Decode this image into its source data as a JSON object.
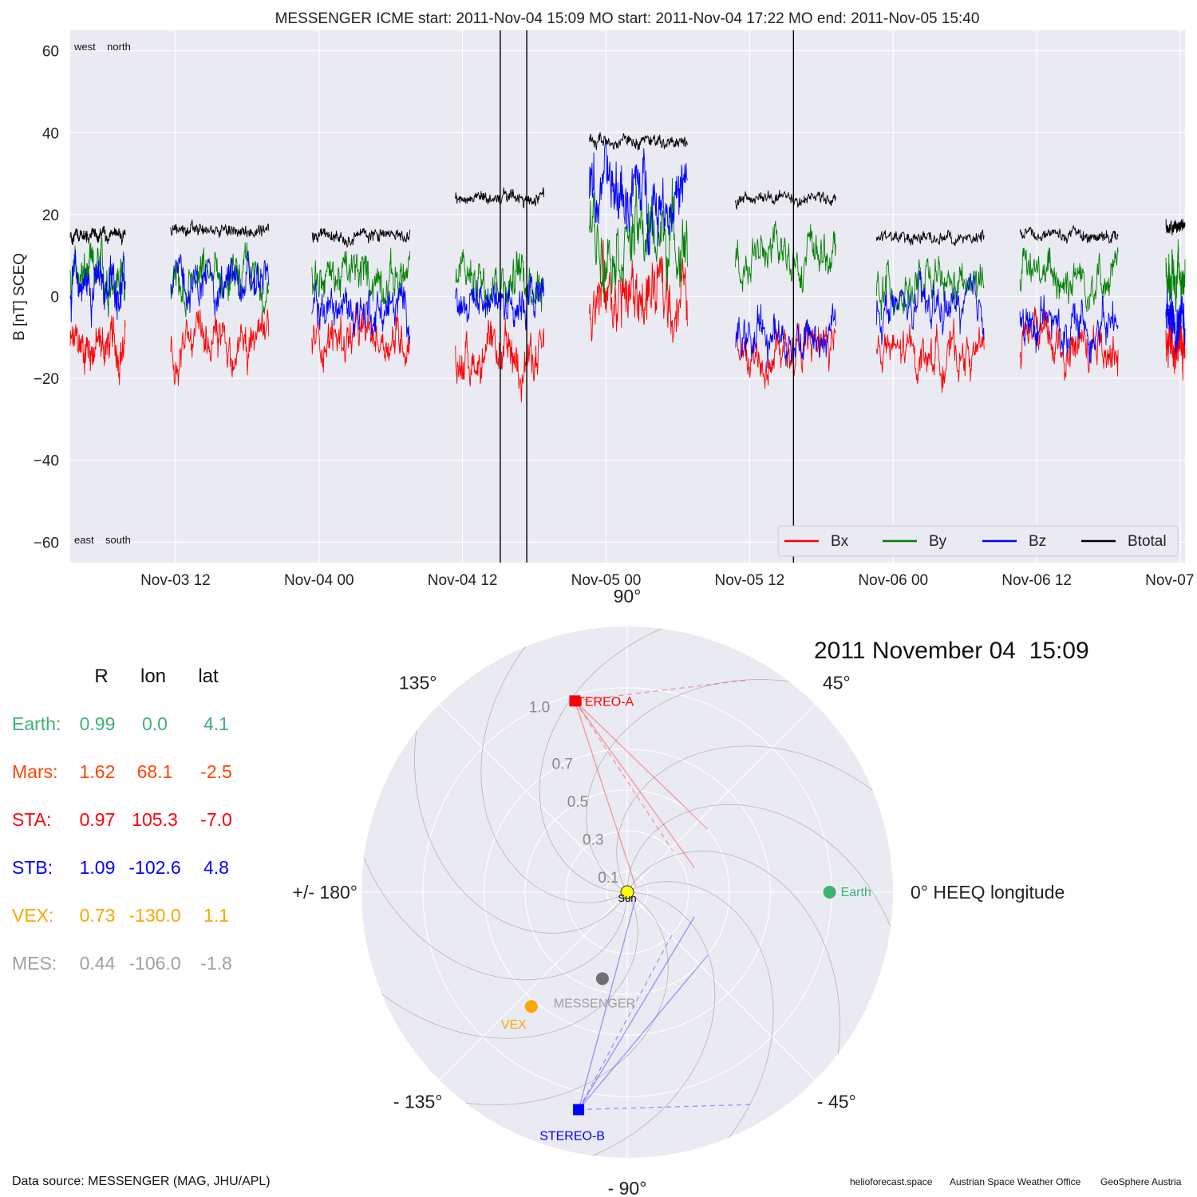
{
  "title": "MESSENGER    ICME start: 2011-Nov-04 15:09   MO start: 2011-Nov-04 17:22   MO end: 2011-Nov-05 15:40",
  "corner_labels": {
    "top": "west    north",
    "bottom": "east    south"
  },
  "footer": {
    "data_source": "Data source: MESSENGER (MAG, JHU/APL)",
    "credits": [
      "helioforecast.space",
      "Austrian Space Weather Office",
      "GeoSphere Austria"
    ]
  },
  "colors": {
    "Bx": "#ff0000",
    "By": "#008000",
    "Bz": "#0000ff",
    "Btotal": "#000000",
    "earth": "#3cb371",
    "mars": "#ff4500",
    "sta": "#ff0000",
    "stb": "#0000ff",
    "vex": "#ffa500",
    "mes": "#a0a0a0",
    "plot_bg": "#eaeaf2"
  },
  "chart_data": [
    {
      "type": "line",
      "title": "MESSENGER    ICME start: 2011-Nov-04 15:09   MO start: 2011-Nov-04 17:22   MO end: 2011-Nov-05 15:40",
      "ylabel": "B [nT] SCEQ",
      "xlabel": "",
      "x_range": [
        "2011-11-03 03:12",
        "2011-11-07 00:24"
      ],
      "ylim": [
        -65,
        65
      ],
      "yticks": [
        -60,
        -40,
        -20,
        0,
        20,
        40,
        60
      ],
      "xtick_labels": [
        "Nov-03 12",
        "Nov-04 00",
        "Nov-04 12",
        "Nov-05 00",
        "Nov-05 12",
        "Nov-06 00",
        "Nov-06 12",
        "Nov-07 00"
      ],
      "xtick_times": [
        "2011-11-03 12:00",
        "2011-11-04 00:00",
        "2011-11-04 12:00",
        "2011-11-05 00:00",
        "2011-11-05 12:00",
        "2011-11-06 00:00",
        "2011-11-06 12:00",
        "2011-11-07 00:00"
      ],
      "grid": true,
      "legend": {
        "placement": "bottom-right",
        "entries": [
          "Bx",
          "By",
          "Bz",
          "Btotal"
        ]
      },
      "event_lines": [
        {
          "label": "ICME start",
          "time": "2011-11-04 15:09"
        },
        {
          "label": "MO start",
          "time": "2011-11-04 17:22"
        },
        {
          "label": "MO end",
          "time": "2011-11-05 15:40"
        }
      ],
      "series_note": "Approximate mean levels per data segment (times in 2011-11-DD HH:MM)",
      "segments": [
        {
          "start": "2011-11-03 03:12",
          "end": "2011-11-03 07:48",
          "Btotal": 15,
          "Bx": -12,
          "By": 5,
          "Bz": 3
        },
        {
          "start": "2011-11-03 11:36",
          "end": "2011-11-03 19:48",
          "Btotal": 16,
          "Bx": -12,
          "By": 4,
          "Bz": 3
        },
        {
          "start": "2011-11-03 23:24",
          "end": "2011-11-04 07:36",
          "Btotal": 15,
          "Bx": -10,
          "By": 5,
          "Bz": -3
        },
        {
          "start": "2011-11-04 11:24",
          "end": "2011-11-04 18:48",
          "Btotal": 24,
          "Bx": -15,
          "By": 5,
          "Bz": 0
        },
        {
          "start": "2011-11-04 22:36",
          "end": "2011-11-05 06:48",
          "Btotal": 38,
          "Bx": 0,
          "By": 15,
          "Bz": 25
        },
        {
          "start": "2011-11-05 10:48",
          "end": "2011-11-05 19:12",
          "Btotal": 24,
          "Bx": -13,
          "By": 10,
          "Bz": -10
        },
        {
          "start": "2011-11-05 22:36",
          "end": "2011-11-06 07:36",
          "Btotal": 14,
          "Bx": -14,
          "By": 2,
          "Bz": -3
        },
        {
          "start": "2011-11-06 10:36",
          "end": "2011-11-06 18:48",
          "Btotal": 15,
          "Bx": -12,
          "By": 5,
          "Bz": -7
        },
        {
          "start": "2011-11-06 22:48",
          "end": "2011-11-07 00:24",
          "Btotal": 17,
          "Bx": -12,
          "By": 5,
          "Bz": -5
        }
      ]
    },
    {
      "type": "scatter",
      "subtype": "polar",
      "date_label": "2011 November 04  15:09",
      "r_ticks": [
        0.1,
        0.3,
        0.5,
        0.7,
        1.0
      ],
      "r_tick_labels": [
        "0.1",
        "0.3",
        "0.5",
        "0.7",
        "1.0"
      ],
      "angle_labels": [
        {
          "angle": 90,
          "text": "90°"
        },
        {
          "angle": 45,
          "text": "45°"
        },
        {
          "angle": 0,
          "text": "0° HEEQ longitude"
        },
        {
          "angle": -45,
          "text": "- 45°"
        },
        {
          "angle": -90,
          "text": "- 90°"
        },
        {
          "angle": -135,
          "text": "- 135°"
        },
        {
          "angle": 180,
          "text": "+/- 180°"
        },
        {
          "angle": 135,
          "text": "135°"
        }
      ],
      "sun": {
        "name": "Sun",
        "r": 0,
        "lon": 0
      },
      "bodies": [
        {
          "name": "Earth",
          "r": 0.99,
          "lon": 0.0,
          "color": "#3cb371",
          "marker": "circle"
        },
        {
          "name": "STEREO-A",
          "r": 0.97,
          "lon": 105.3,
          "color": "#ff0000",
          "marker": "square"
        },
        {
          "name": "STEREO-B",
          "r": 1.09,
          "lon": -102.6,
          "color": "#0000ff",
          "marker": "square"
        },
        {
          "name": "VEX",
          "r": 0.73,
          "lon": -130.0,
          "color": "#ffa500",
          "marker": "circle"
        },
        {
          "name": "MESSENGER",
          "r": 0.44,
          "lon": -106.0,
          "color": "#707070",
          "marker": "circle"
        }
      ],
      "table": {
        "headers": [
          "R",
          "lon",
          "lat"
        ],
        "rows": [
          {
            "label": "Earth:",
            "R": "0.99",
            "lon": "0.0",
            "lat": "4.1",
            "color": "#3cb371"
          },
          {
            "label": "Mars:",
            "R": "1.62",
            "lon": "68.1",
            "lat": "-2.5",
            "color": "#ff4500"
          },
          {
            "label": "STA:",
            "R": "0.97",
            "lon": "105.3",
            "lat": "-7.0",
            "color": "#ff0000"
          },
          {
            "label": "STB:",
            "R": "1.09",
            "lon": "-102.6",
            "lat": "4.8",
            "color": "#0000ff"
          },
          {
            "label": "VEX:",
            "R": "0.73",
            "lon": "-130.0",
            "lat": "1.1",
            "color": "#ffa500"
          },
          {
            "label": "MES:",
            "R": "0.44",
            "lon": "-106.0",
            "lat": "-1.8",
            "color": "#a0a0a0"
          }
        ]
      }
    }
  ]
}
